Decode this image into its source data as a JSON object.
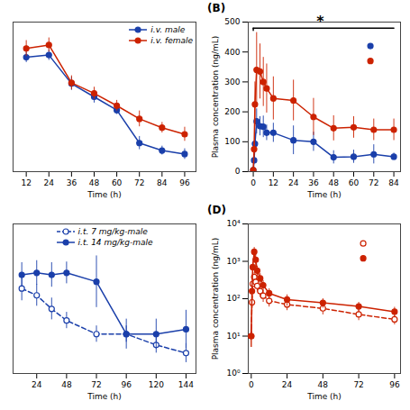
{
  "chart_data": [
    {
      "type": "line",
      "xlabel": "Time (h)",
      "xlim": [
        5,
        102
      ],
      "xticks": [
        12,
        24,
        36,
        48,
        60,
        72,
        84,
        96
      ],
      "ylim": [
        170,
        510
      ],
      "tick_labels": "x",
      "grid": false,
      "legend": "upper right",
      "series": [
        {
          "name": "i.v. male",
          "color": "#1a3faa",
          "marker": "circle",
          "line_style": "solid",
          "x": [
            12,
            24,
            36,
            48,
            60,
            72,
            84,
            96
          ],
          "values": [
            430,
            435,
            370,
            340,
            310,
            235,
            218,
            210
          ],
          "errors": [
            12,
            12,
            15,
            14,
            10,
            15,
            10,
            12
          ]
        },
        {
          "name": "i.v. female",
          "color": "#cc2200",
          "marker": "circle",
          "line_style": "solid",
          "x": [
            12,
            24,
            36,
            48,
            60,
            72,
            84,
            96
          ],
          "values": [
            450,
            458,
            372,
            348,
            320,
            290,
            270,
            255
          ],
          "errors": [
            18,
            16,
            16,
            14,
            12,
            18,
            12,
            16
          ]
        }
      ]
    },
    {
      "type": "line",
      "title": "(B)",
      "xlabel": "Time (h)",
      "ylabel": "Plasma concentration (ng/mL)",
      "xlim": [
        -3,
        88
      ],
      "xticks": [
        0,
        12,
        24,
        36,
        48,
        60,
        72,
        84
      ],
      "ylim": [
        0,
        500
      ],
      "yticks": [
        0,
        100,
        200,
        300,
        400,
        500
      ],
      "grid": false,
      "series": [
        {
          "color": "#1a3faa",
          "marker": "circle",
          "line_style": "solid",
          "x": [
            0,
            0.5,
            1,
            2,
            4,
            6,
            8,
            12,
            24,
            36,
            48,
            60,
            72,
            84
          ],
          "values": [
            5,
            38,
            93,
            168,
            152,
            150,
            130,
            130,
            105,
            100,
            48,
            50,
            58,
            50
          ],
          "errors": [
            5,
            12,
            22,
            42,
            32,
            36,
            26,
            32,
            48,
            32,
            22,
            22,
            32,
            12
          ]
        },
        {
          "color": "#cc2200",
          "marker": "circle",
          "line_style": "solid",
          "x": [
            0,
            0.5,
            1,
            2,
            4,
            6,
            8,
            12,
            24,
            36,
            48,
            60,
            72,
            84
          ],
          "values": [
            5,
            75,
            225,
            340,
            335,
            300,
            278,
            245,
            238,
            183,
            145,
            148,
            140,
            140
          ],
          "errors": [
            5,
            25,
            75,
            125,
            92,
            82,
            82,
            72,
            68,
            62,
            42,
            36,
            36,
            36
          ]
        },
        {
          "type": "line",
          "color": "#000000",
          "marker": "none",
          "line_style": "solid",
          "x": [
            0,
            84
          ],
          "values": [
            480,
            480
          ]
        },
        {
          "type": "line",
          "color": "#000000",
          "marker": "none",
          "line_style": "solid",
          "x": [
            0,
            0
          ],
          "values": [
            472,
            480
          ]
        },
        {
          "type": "scatter",
          "color": "#1a3faa",
          "marker": "circle",
          "x": [
            70
          ],
          "values": [
            420
          ]
        },
        {
          "type": "scatter",
          "color": "#cc2200",
          "marker": "circle",
          "x": [
            70
          ],
          "values": [
            370
          ]
        }
      ],
      "annotations": [
        {
          "text": "*",
          "x": 40,
          "y": 485
        }
      ]
    },
    {
      "type": "line",
      "xlabel": "Time (h)",
      "xlim": [
        5,
        152
      ],
      "xticks": [
        24,
        48,
        72,
        96,
        120,
        144
      ],
      "ylim": [
        110,
        330
      ],
      "tick_labels": "x",
      "grid": false,
      "legend": "upper center",
      "series": [
        {
          "name": "i.t. 7 mg/kg-male",
          "color": "#1a3faa",
          "marker": "circle-open",
          "line_style": "dashed",
          "x": [
            12,
            24,
            36,
            48,
            72,
            96,
            120,
            144
          ],
          "values": [
            235,
            225,
            205,
            188,
            168,
            168,
            152,
            140
          ],
          "errors": [
            18,
            16,
            16,
            12,
            12,
            12,
            12,
            14
          ]
        },
        {
          "name": "i.t. 14 mg/kg-male",
          "color": "#1a3faa",
          "marker": "circle",
          "line_style": "solid",
          "x": [
            12,
            24,
            36,
            48,
            72,
            96,
            120,
            144
          ],
          "values": [
            255,
            258,
            255,
            258,
            245,
            168,
            168,
            175
          ],
          "errors": [
            18,
            18,
            18,
            16,
            38,
            22,
            22,
            28
          ]
        }
      ]
    },
    {
      "type": "line",
      "title": "(D)",
      "xlabel": "Time (h)",
      "ylabel": "Plasma concentration (ng/mL)",
      "xlim": [
        -2,
        100
      ],
      "xticks": [
        0,
        24,
        48,
        72,
        96
      ],
      "log": "y",
      "ylim": [
        1,
        10000
      ],
      "yticks": [
        {
          "value": 1,
          "label": "10⁰"
        },
        {
          "value": 10,
          "label": "10¹"
        },
        {
          "value": 100,
          "label": "10²"
        },
        {
          "value": 1000,
          "label": "10³"
        },
        {
          "value": 10000,
          "label": "10⁴"
        }
      ],
      "grid": false,
      "series": [
        {
          "color": "#cc2200",
          "marker": "circle-open",
          "line_style": "dashed",
          "x": [
            0,
            0.5,
            1,
            2,
            3,
            4,
            6,
            8,
            12,
            24,
            48,
            72,
            96
          ],
          "values": [
            10,
            80,
            250,
            380,
            280,
            220,
            160,
            120,
            88,
            70,
            55,
            38,
            28
          ],
          "errors": [
            5,
            25,
            80,
            120,
            90,
            70,
            50,
            40,
            28,
            22,
            18,
            12,
            8
          ]
        },
        {
          "color": "#cc2200",
          "marker": "circle",
          "line_style": "solid",
          "x": [
            0,
            0.5,
            1,
            2,
            3,
            4,
            6,
            8,
            12,
            24,
            48,
            72,
            96
          ],
          "values": [
            10,
            160,
            700,
            1800,
            1100,
            560,
            350,
            230,
            140,
            95,
            78,
            62,
            45
          ],
          "errors": [
            5,
            60,
            250,
            550,
            380,
            180,
            120,
            75,
            45,
            32,
            22,
            18,
            14
          ]
        },
        {
          "type": "scatter",
          "color": "#cc2200",
          "marker": "circle-open",
          "x": [
            75
          ],
          "values": [
            3000
          ]
        },
        {
          "type": "scatter",
          "color": "#cc2200",
          "marker": "circle",
          "x": [
            75
          ],
          "values": [
            1200
          ]
        }
      ]
    }
  ]
}
